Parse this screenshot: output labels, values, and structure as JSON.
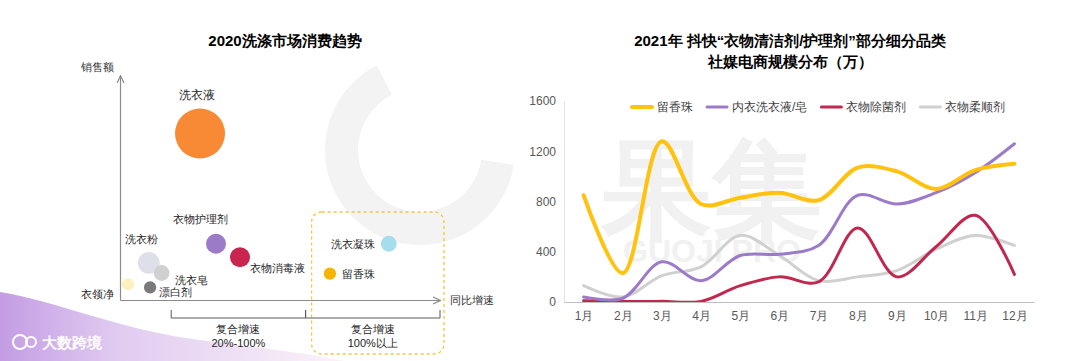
{
  "source": "大数跨境",
  "watermark": [
    "果集",
    "GUOJI PRO"
  ],
  "chart_data": [
    {
      "type": "bubble",
      "title": "2020洗涤市场消费趋势",
      "x_label": "同比增速",
      "y_label": "销售额",
      "labels": [
        "洗衣液",
        "衣物护理剂",
        "衣物消毒液",
        "洗衣粉",
        "洗衣皂",
        "衣领净",
        "漂白剂",
        "洗衣凝珠",
        "留香珠"
      ],
      "x": [
        25,
        30,
        37.5,
        9,
        13,
        2.5,
        9.4,
        84,
        65.6
      ],
      "y": [
        74,
        25,
        19,
        16.5,
        12,
        7,
        5.6,
        25,
        11.7
      ],
      "sizes": [
        100,
        16,
        16,
        19,
        10,
        6,
        6,
        10,
        6
      ],
      "colors": [
        "#F98A35",
        "#9B7BC8",
        "#C8254F",
        "#DDE0E8",
        "#D0D0D0",
        "#FFF0C0",
        "#7A7A7A",
        "#A5DDED",
        "#F4B400"
      ],
      "xlim": [
        0,
        100
      ],
      "ylim": [
        0,
        100
      ],
      "tick_labels": false,
      "annotations": [
        {
          "text": [
            "复合增速",
            "20%-100%"
          ],
          "x": [
            16,
            58
          ]
        },
        {
          "text": [
            "复合增速",
            "100%以上"
          ],
          "x": [
            58,
            100
          ]
        }
      ]
    },
    {
      "type": "line",
      "title": "2021年 抖快“衣物清洁剂/护理剂”部分细分品类",
      "subtitle": "社媒电商规模分布（万）",
      "categories": [
        "1月",
        "2月",
        "3月",
        "4月",
        "5月",
        "6月",
        "7月",
        "8月",
        "9月",
        "10月",
        "11月",
        "12月"
      ],
      "series": [
        {
          "name": "留香珠",
          "color": "#FFC20E",
          "values": [
            850,
            230,
            1280,
            780,
            830,
            870,
            810,
            1070,
            1040,
            900,
            1050,
            1100
          ]
        },
        {
          "name": "内衣洗衣液/皂",
          "color": "#9B7BC8",
          "values": [
            40,
            30,
            320,
            170,
            370,
            380,
            450,
            850,
            780,
            870,
            1030,
            1260
          ]
        },
        {
          "name": "衣物除菌剂",
          "color": "#C0284F",
          "values": [
            10,
            5,
            5,
            5,
            130,
            200,
            160,
            590,
            200,
            440,
            690,
            220
          ]
        },
        {
          "name": "衣物柔顺剂",
          "color": "#D0D0D0",
          "values": [
            130,
            40,
            210,
            280,
            530,
            370,
            170,
            200,
            250,
            420,
            530,
            450
          ]
        }
      ],
      "ylim": [
        0,
        1600
      ],
      "yticks": [
        0,
        400,
        800,
        1200,
        1600
      ],
      "grid": false,
      "legend": "top"
    }
  ]
}
